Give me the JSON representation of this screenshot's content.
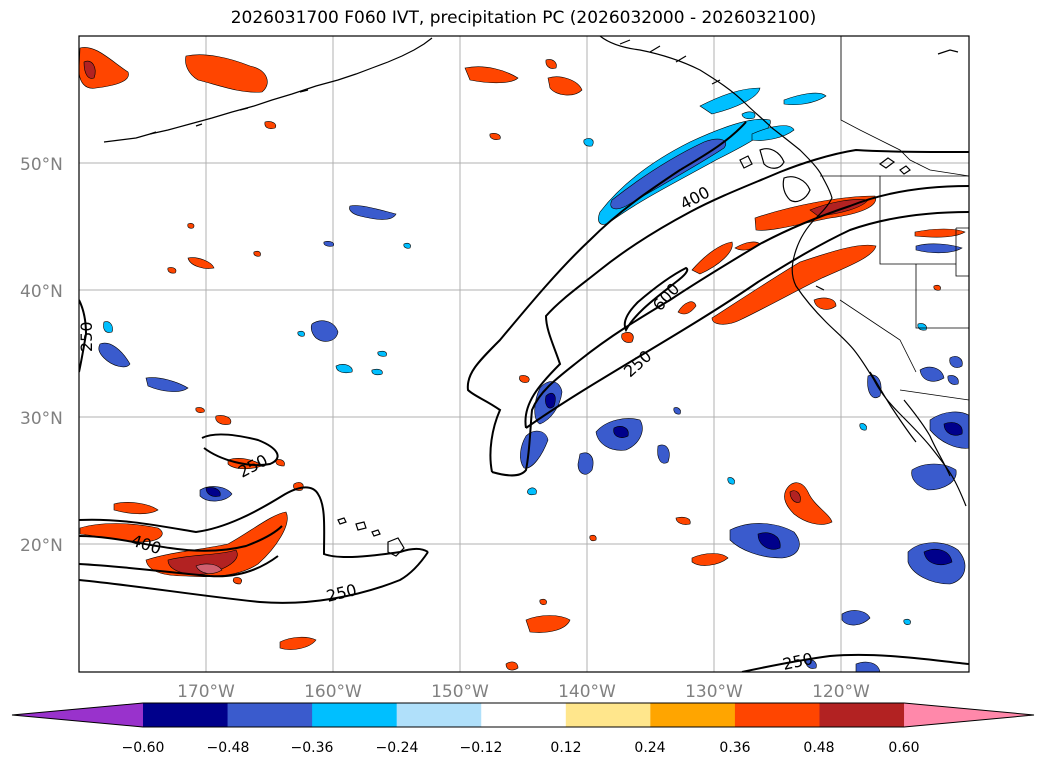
{
  "title": "2026031700 F060 IVT, precipitation PC (2026032000 - 2026032100)",
  "lat_labels": [
    "50°N",
    "40°N",
    "30°N",
    "20°N"
  ],
  "lon_labels": [
    "170°W",
    "160°W",
    "150°W",
    "140°W",
    "130°W",
    "120°W"
  ],
  "contour_labels": [
    "250",
    "400",
    "600",
    "400",
    "250",
    "250",
    "250",
    "250"
  ],
  "colorbar": {
    "ticks": [
      "−0.60",
      "−0.48",
      "−0.36",
      "−0.24",
      "−0.12",
      "0.12",
      "0.24",
      "0.36",
      "0.48",
      "0.60"
    ],
    "colors": [
      "#9932cc",
      "#00008b",
      "#3a5bcd",
      "#00bfff",
      "#b0e0fa",
      "#ffffff",
      "#ffe68c",
      "#ffa500",
      "#ff4500",
      "#b22222",
      "#ff88aa"
    ]
  }
}
